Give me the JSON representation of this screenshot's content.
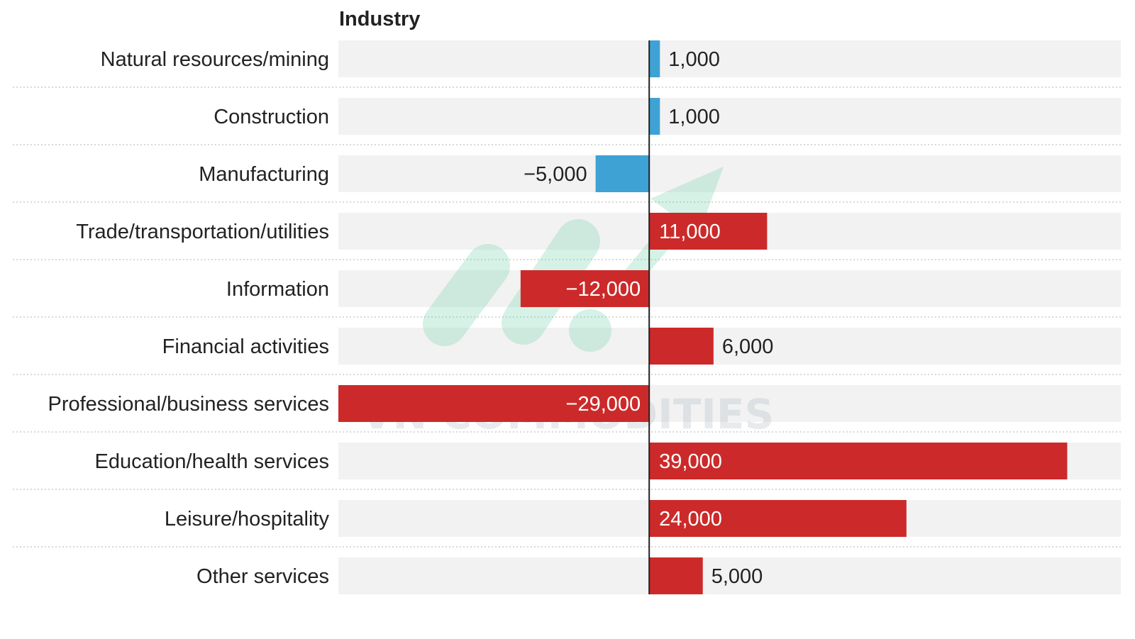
{
  "chart_data": {
    "type": "bar",
    "orientation": "horizontal",
    "column_header": "Industry",
    "categories": [
      "Natural resources/mining",
      "Construction",
      "Manufacturing",
      "Trade/transportation/utilities",
      "Information",
      "Financial activities",
      "Professional/business services",
      "Education/health services",
      "Leisure/hospitality",
      "Other services"
    ],
    "values": [
      1000,
      1000,
      -5000,
      11000,
      -12000,
      6000,
      -29000,
      39000,
      24000,
      5000
    ],
    "value_labels": [
      "1,000",
      "1,000",
      "−5,000",
      "11,000",
      "−12,000",
      "6,000",
      "−29,000",
      "39,000",
      "24,000",
      "5,000"
    ],
    "bar_colors": [
      "#3fa2d4",
      "#3fa2d4",
      "#3fa2d4",
      "#cc2a2a",
      "#cc2a2a",
      "#cc2a2a",
      "#cc2a2a",
      "#cc2a2a",
      "#cc2a2a",
      "#cc2a2a"
    ],
    "xlim": [
      -29000,
      44000
    ],
    "grid": false,
    "legend": "none"
  },
  "watermark": {
    "text": "VN COMMODITIES",
    "color": "#aab8c2",
    "logo_color": "#6fd0a8"
  },
  "colors": {
    "track": "#f2f2f2",
    "axis": "#222222",
    "separator": "#cccccc",
    "label_dark": "#222222",
    "label_light": "#ffffff"
  }
}
